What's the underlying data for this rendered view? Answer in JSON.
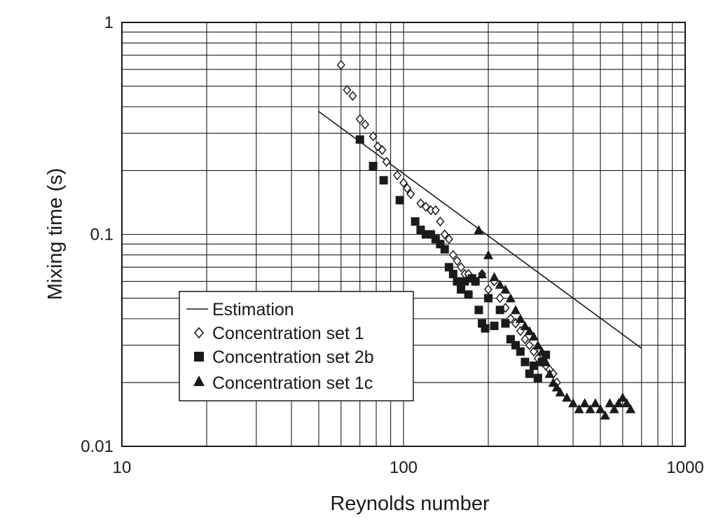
{
  "chart_data": {
    "type": "scatter",
    "title": "",
    "xlabel": "Reynolds number",
    "ylabel": "Mixing time (s)",
    "x_scale": "log",
    "y_scale": "log",
    "xlim": [
      10,
      1000
    ],
    "ylim": [
      0.01,
      1
    ],
    "x_ticks": [
      "10",
      "100",
      "1000"
    ],
    "y_ticks": [
      "0.01",
      "0.1",
      "1"
    ],
    "grid": true,
    "legend_position": "lower-left",
    "series": [
      {
        "name": "Estimation",
        "kind": "line",
        "color": "#1a1a1a",
        "x": [
          50,
          700
        ],
        "y": [
          0.38,
          0.029
        ]
      },
      {
        "name": "Concentration set 1",
        "kind": "marker",
        "marker": "diamond-open",
        "color": "#1a1a1a",
        "x": [
          60,
          63,
          66,
          70,
          73,
          78,
          81,
          84,
          87,
          95,
          100,
          103,
          106,
          115,
          120,
          125,
          130,
          135,
          140,
          145,
          150,
          155,
          160,
          165,
          170,
          180,
          190,
          200,
          210,
          220,
          230,
          240,
          250,
          260,
          270,
          280,
          290,
          300,
          310,
          320,
          330,
          340,
          350
        ],
        "y": [
          0.63,
          0.48,
          0.45,
          0.35,
          0.33,
          0.29,
          0.26,
          0.25,
          0.22,
          0.19,
          0.175,
          0.165,
          0.155,
          0.14,
          0.135,
          0.13,
          0.13,
          0.115,
          0.1,
          0.095,
          0.08,
          0.075,
          0.07,
          0.065,
          0.065,
          0.06,
          0.065,
          0.055,
          0.06,
          0.05,
          0.045,
          0.04,
          0.038,
          0.035,
          0.032,
          0.03,
          0.028,
          0.026,
          0.025,
          0.024,
          0.023,
          0.022,
          0.02
        ]
      },
      {
        "name": "Concentration set 2b",
        "kind": "marker",
        "marker": "square-filled",
        "color": "#1a1a1a",
        "x": [
          70,
          78,
          85,
          97,
          110,
          115,
          120,
          125,
          130,
          135,
          140,
          145,
          150,
          155,
          160,
          165,
          170,
          175,
          180,
          185,
          190,
          195,
          200,
          210,
          220,
          230,
          240,
          250,
          260,
          270,
          280,
          290,
          300,
          310,
          320
        ],
        "y": [
          0.28,
          0.21,
          0.18,
          0.145,
          0.115,
          0.105,
          0.1,
          0.1,
          0.095,
          0.09,
          0.085,
          0.07,
          0.065,
          0.06,
          0.055,
          0.06,
          0.052,
          0.062,
          0.06,
          0.044,
          0.038,
          0.036,
          0.05,
          0.037,
          0.044,
          0.038,
          0.032,
          0.03,
          0.028,
          0.025,
          0.022,
          0.024,
          0.021,
          0.025,
          0.027
        ]
      },
      {
        "name": "Concentration set 1c",
        "kind": "marker",
        "marker": "triangle-filled",
        "color": "#1a1a1a",
        "x": [
          185,
          190,
          200,
          210,
          220,
          230,
          240,
          250,
          260,
          270,
          280,
          290,
          300,
          310,
          320,
          330,
          340,
          350,
          360,
          380,
          400,
          420,
          440,
          460,
          480,
          500,
          520,
          540,
          560,
          580,
          600,
          620,
          640
        ],
        "y": [
          0.105,
          0.065,
          0.08,
          0.063,
          0.058,
          0.055,
          0.05,
          0.044,
          0.04,
          0.037,
          0.035,
          0.033,
          0.03,
          0.028,
          0.025,
          0.022,
          0.02,
          0.019,
          0.018,
          0.017,
          0.016,
          0.015,
          0.016,
          0.015,
          0.016,
          0.015,
          0.014,
          0.016,
          0.015,
          0.016,
          0.017,
          0.016,
          0.015
        ]
      }
    ]
  }
}
